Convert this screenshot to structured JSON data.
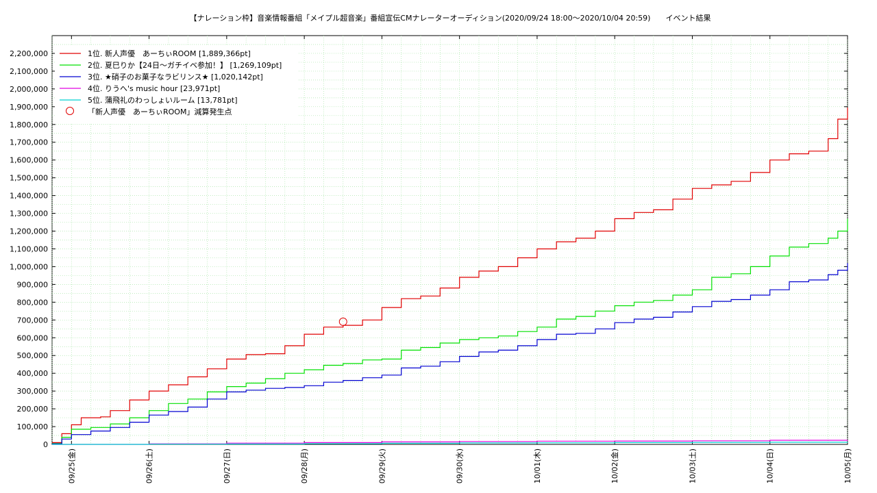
{
  "chart_data": {
    "type": "line",
    "title": "【ナレーション枠】音楽情報番組「メイプル超音楽」番組宣伝CMナレーターオーディション(2020/09/24 18:00〜2020/10/04 20:59)　　イベント結果",
    "xlabel": "",
    "ylabel": "",
    "xlim": [
      "2020/09/24 18:00",
      "2020/10/05 00:00"
    ],
    "ylim": [
      0,
      2300000
    ],
    "grid": true,
    "legend_position": "top-left",
    "y_ticks": [
      {
        "value": 0,
        "label": "0"
      },
      {
        "value": 100000,
        "label": "100,000"
      },
      {
        "value": 200000,
        "label": "200,000"
      },
      {
        "value": 300000,
        "label": "300,000"
      },
      {
        "value": 400000,
        "label": "400,000"
      },
      {
        "value": 500000,
        "label": "500,000"
      },
      {
        "value": 600000,
        "label": "600,000"
      },
      {
        "value": 700000,
        "label": "700,000"
      },
      {
        "value": 800000,
        "label": "800,000"
      },
      {
        "value": 900000,
        "label": "900,000"
      },
      {
        "value": 1000000,
        "label": "1,000,000"
      },
      {
        "value": 1100000,
        "label": "1,100,000"
      },
      {
        "value": 1200000,
        "label": "1,200,000"
      },
      {
        "value": 1300000,
        "label": "1,300,000"
      },
      {
        "value": 1400000,
        "label": "1,400,000"
      },
      {
        "value": 1500000,
        "label": "1,500,000"
      },
      {
        "value": 1600000,
        "label": "1,600,000"
      },
      {
        "value": 1700000,
        "label": "1,700,000"
      },
      {
        "value": 1800000,
        "label": "1,800,000"
      },
      {
        "value": 1900000,
        "label": "1,900,000"
      },
      {
        "value": 2000000,
        "label": "2,000,000"
      },
      {
        "value": 2100000,
        "label": "2,100,000"
      },
      {
        "value": 2200000,
        "label": "2,200,000"
      }
    ],
    "x_ticks": [
      {
        "value": "2020/09/25 00:00",
        "label": "09/25(金)"
      },
      {
        "value": "2020/09/26 00:00",
        "label": "09/26(土)"
      },
      {
        "value": "2020/09/27 00:00",
        "label": "09/27(日)"
      },
      {
        "value": "2020/09/28 00:00",
        "label": "09/28(月)"
      },
      {
        "value": "2020/09/29 00:00",
        "label": "09/29(火)"
      },
      {
        "value": "2020/09/30 00:00",
        "label": "09/30(水)"
      },
      {
        "value": "2020/10/01 00:00",
        "label": "10/01(木)"
      },
      {
        "value": "2020/10/02 00:00",
        "label": "10/02(金)"
      },
      {
        "value": "2020/10/03 00:00",
        "label": "10/03(土)"
      },
      {
        "value": "2020/10/04 00:00",
        "label": "10/04(日)"
      },
      {
        "value": "2020/10/05 00:00",
        "label": "10/05(月)"
      }
    ],
    "series": [
      {
        "name": "1位. 新人声優　あーちぃROOM [1,889,366pt]",
        "color": "#e00000",
        "x": [
          "2020/09/24 18:00",
          "2020/09/24 21:00",
          "2020/09/25 00:00",
          "2020/09/25 03:00",
          "2020/09/25 09:00",
          "2020/09/25 12:00",
          "2020/09/25 18:00",
          "2020/09/26 00:00",
          "2020/09/26 06:00",
          "2020/09/26 12:00",
          "2020/09/26 18:00",
          "2020/09/27 00:00",
          "2020/09/27 06:00",
          "2020/09/27 12:00",
          "2020/09/27 18:00",
          "2020/09/28 00:00",
          "2020/09/28 06:00",
          "2020/09/28 12:00",
          "2020/09/28 18:00",
          "2020/09/29 00:00",
          "2020/09/29 06:00",
          "2020/09/29 12:00",
          "2020/09/29 18:00",
          "2020/09/30 00:00",
          "2020/09/30 06:00",
          "2020/09/30 12:00",
          "2020/09/30 18:00",
          "2020/10/01 00:00",
          "2020/10/01 06:00",
          "2020/10/01 12:00",
          "2020/10/01 18:00",
          "2020/10/02 00:00",
          "2020/10/02 06:00",
          "2020/10/02 12:00",
          "2020/10/02 18:00",
          "2020/10/03 00:00",
          "2020/10/03 06:00",
          "2020/10/03 12:00",
          "2020/10/03 18:00",
          "2020/10/04 00:00",
          "2020/10/04 06:00",
          "2020/10/04 12:00",
          "2020/10/04 18:00",
          "2020/10/04 20:59",
          "2020/10/05 00:00"
        ],
        "y": [
          10000,
          60000,
          110000,
          150000,
          155000,
          190000,
          250000,
          300000,
          335000,
          380000,
          425000,
          480000,
          505000,
          510000,
          555000,
          620000,
          660000,
          670000,
          700000,
          770000,
          820000,
          835000,
          880000,
          940000,
          975000,
          1000000,
          1050000,
          1100000,
          1140000,
          1160000,
          1200000,
          1270000,
          1305000,
          1320000,
          1380000,
          1440000,
          1460000,
          1480000,
          1530000,
          1600000,
          1635000,
          1650000,
          1720000,
          1830000,
          1895000
        ]
      },
      {
        "name": "2位. 夏巳りか【24日〜ガチイベ参加！】 [1,269,109pt]",
        "color": "#00e000",
        "x": [
          "2020/09/24 18:00",
          "2020/09/24 21:00",
          "2020/09/25 00:00",
          "2020/09/25 06:00",
          "2020/09/25 12:00",
          "2020/09/25 18:00",
          "2020/09/26 00:00",
          "2020/09/26 06:00",
          "2020/09/26 12:00",
          "2020/09/26 18:00",
          "2020/09/27 00:00",
          "2020/09/27 06:00",
          "2020/09/27 12:00",
          "2020/09/27 18:00",
          "2020/09/28 00:00",
          "2020/09/28 06:00",
          "2020/09/28 12:00",
          "2020/09/28 18:00",
          "2020/09/29 00:00",
          "2020/09/29 06:00",
          "2020/09/29 12:00",
          "2020/09/29 18:00",
          "2020/09/30 00:00",
          "2020/09/30 06:00",
          "2020/09/30 12:00",
          "2020/09/30 18:00",
          "2020/10/01 00:00",
          "2020/10/01 06:00",
          "2020/10/01 12:00",
          "2020/10/01 18:00",
          "2020/10/02 00:00",
          "2020/10/02 06:00",
          "2020/10/02 12:00",
          "2020/10/02 18:00",
          "2020/10/03 00:00",
          "2020/10/03 06:00",
          "2020/10/03 12:00",
          "2020/10/03 18:00",
          "2020/10/04 00:00",
          "2020/10/04 06:00",
          "2020/10/04 12:00",
          "2020/10/04 18:00",
          "2020/10/04 20:59",
          "2020/10/05 00:00"
        ],
        "y": [
          5000,
          40000,
          85000,
          95000,
          115000,
          150000,
          190000,
          230000,
          255000,
          295000,
          325000,
          345000,
          370000,
          400000,
          420000,
          445000,
          455000,
          475000,
          480000,
          530000,
          545000,
          570000,
          590000,
          600000,
          610000,
          635000,
          660000,
          705000,
          720000,
          750000,
          780000,
          800000,
          810000,
          840000,
          870000,
          940000,
          960000,
          1000000,
          1060000,
          1110000,
          1130000,
          1160000,
          1200000,
          1270000
        ]
      },
      {
        "name": "3位. ★硝子のお菓子なラビリンス★ [1,020,142pt]",
        "color": "#0000d0",
        "x": [
          "2020/09/24 18:00",
          "2020/09/24 21:00",
          "2020/09/25 00:00",
          "2020/09/25 06:00",
          "2020/09/25 12:00",
          "2020/09/25 18:00",
          "2020/09/26 00:00",
          "2020/09/26 06:00",
          "2020/09/26 12:00",
          "2020/09/26 18:00",
          "2020/09/27 00:00",
          "2020/09/27 06:00",
          "2020/09/27 12:00",
          "2020/09/27 18:00",
          "2020/09/28 00:00",
          "2020/09/28 06:00",
          "2020/09/28 12:00",
          "2020/09/28 18:00",
          "2020/09/29 00:00",
          "2020/09/29 06:00",
          "2020/09/29 12:00",
          "2020/09/29 18:00",
          "2020/09/30 00:00",
          "2020/09/30 06:00",
          "2020/09/30 12:00",
          "2020/09/30 18:00",
          "2020/10/01 00:00",
          "2020/10/01 06:00",
          "2020/10/01 12:00",
          "2020/10/01 18:00",
          "2020/10/02 00:00",
          "2020/10/02 06:00",
          "2020/10/02 12:00",
          "2020/10/02 18:00",
          "2020/10/03 00:00",
          "2020/10/03 06:00",
          "2020/10/03 12:00",
          "2020/10/03 18:00",
          "2020/10/04 00:00",
          "2020/10/04 06:00",
          "2020/10/04 12:00",
          "2020/10/04 18:00",
          "2020/10/04 20:59",
          "2020/10/05 00:00"
        ],
        "y": [
          3000,
          30000,
          55000,
          75000,
          95000,
          125000,
          165000,
          185000,
          210000,
          255000,
          295000,
          305000,
          315000,
          320000,
          330000,
          350000,
          360000,
          375000,
          390000,
          430000,
          440000,
          465000,
          495000,
          520000,
          530000,
          555000,
          590000,
          620000,
          625000,
          650000,
          685000,
          705000,
          715000,
          745000,
          775000,
          805000,
          815000,
          840000,
          870000,
          915000,
          925000,
          955000,
          980000,
          1020000
        ]
      },
      {
        "name": "4位. りうへ's music hour [23,971pt]",
        "color": "#e000e0",
        "x": [
          "2020/09/24 18:00",
          "2020/09/26 00:00",
          "2020/09/27 00:00",
          "2020/09/28 00:00",
          "2020/09/29 00:00",
          "2020/09/30 00:00",
          "2020/10/01 00:00",
          "2020/10/02 00:00",
          "2020/10/03 00:00",
          "2020/10/04 00:00",
          "2020/10/05 00:00"
        ],
        "y": [
          0,
          3000,
          7000,
          10000,
          14000,
          16000,
          18000,
          19000,
          20000,
          23000,
          24000
        ]
      },
      {
        "name": "5位. 蒲飛礼のわっしょいルーム [13,781pt]",
        "color": "#00d0d0",
        "x": [
          "2020/09/24 18:00",
          "2020/09/26 00:00",
          "2020/09/27 00:00",
          "2020/09/28 00:00",
          "2020/09/29 00:00",
          "2020/09/30 00:00",
          "2020/10/01 00:00",
          "2020/10/02 00:00",
          "2020/10/03 00:00",
          "2020/10/04 00:00",
          "2020/10/05 00:00"
        ],
        "y": [
          0,
          1000,
          2000,
          4000,
          6000,
          8000,
          9000,
          10000,
          11000,
          12000,
          13800
        ]
      }
    ],
    "annotations": [
      {
        "label": "「新人声優　あーちぃROOM」減算発生点",
        "x": "2020/09/28 12:00",
        "y": 690000,
        "color": "#e00000",
        "marker": "circle"
      }
    ]
  }
}
